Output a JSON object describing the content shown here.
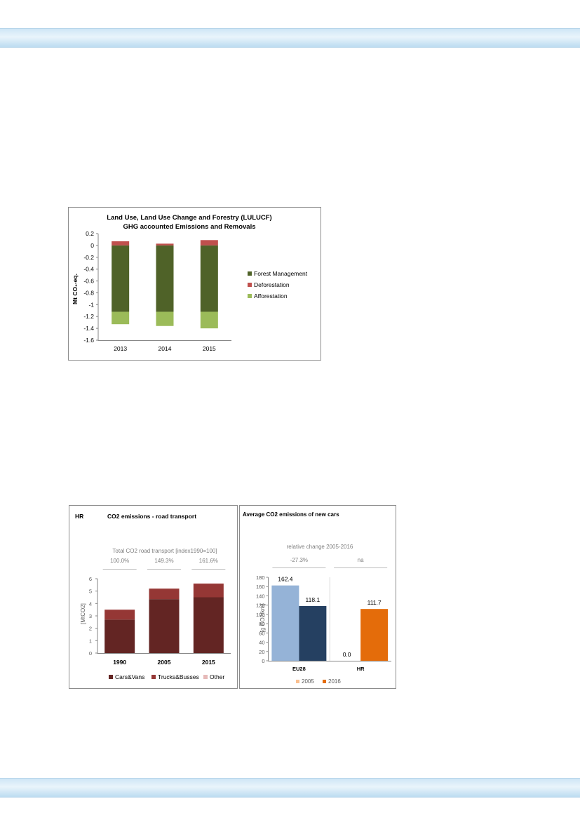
{
  "colors": {
    "forest_management": "#4f6228",
    "deforestation": "#c0504d",
    "afforestation": "#9bbb59",
    "cars_vans": "#632523",
    "trucks_busses": "#953735",
    "other": "#e6b9b8",
    "y2005": "#95b3d7",
    "y2016": "#254061",
    "hr_2016": "#e46c0a",
    "legend_2005": "#fac090",
    "legend_2016": "#e46c0a"
  },
  "chart_data": [
    {
      "type": "bar",
      "stacked": true,
      "title": "Land Use, Land Use Change and Forestry (LULUCF)",
      "subtitle": "GHG accounted Emissions and Removals",
      "ylabel": "Mt CO₂-eq.",
      "xlabel": "",
      "categories": [
        "2013",
        "2014",
        "2015"
      ],
      "series": [
        {
          "name": "Forest Management",
          "values": [
            -1.12,
            -1.12,
            -1.12
          ],
          "color": "#4f6228"
        },
        {
          "name": "Deforestation",
          "values": [
            0.07,
            0.03,
            0.09
          ],
          "color": "#c0504d"
        },
        {
          "name": "Afforestation",
          "values": [
            -0.21,
            -0.24,
            -0.28
          ],
          "color": "#9bbb59"
        }
      ],
      "ylim": [
        -1.6,
        0.2
      ],
      "yticks": [
        "0.2",
        "0",
        "-0.2",
        "-0.4",
        "-0.6",
        "-0.8",
        "-1",
        "-1.2",
        "-1.4",
        "-1.6"
      ],
      "grid": false,
      "legend": "right"
    },
    {
      "type": "bar",
      "stacked": true,
      "corner_label": "HR",
      "title": "CO2 emissions - road transport",
      "index_title": "Total CO2 road  transport [index1990=100]",
      "index_values": [
        "100.0%",
        "149.3%",
        "161.6%"
      ],
      "ylabel": "[MtCO2]",
      "categories": [
        "1990",
        "2005",
        "2015"
      ],
      "series": [
        {
          "name": "Cars&Vans",
          "values": [
            2.7,
            4.35,
            4.5
          ],
          "color": "#632523"
        },
        {
          "name": "Trucks&Busses",
          "values": [
            0.8,
            0.85,
            1.1
          ],
          "color": "#953735"
        },
        {
          "name": "Other",
          "values": [
            0.02,
            0.02,
            0.03
          ],
          "color": "#e6b9b8"
        }
      ],
      "ylim": [
        0,
        6
      ],
      "yticks": [
        "0",
        "1",
        "2",
        "3",
        "4",
        "5",
        "6"
      ],
      "grid": false,
      "legend": "bottom"
    },
    {
      "type": "bar",
      "title": "Average CO2 emissions of new cars",
      "change_title": "relative change 2005-2016",
      "change_values": [
        "-27.3%",
        "na"
      ],
      "ylabel": "[g CO2/km]",
      "categories": [
        "EU28",
        "HR"
      ],
      "series": [
        {
          "name": "2005",
          "values": [
            162.4,
            0.0
          ],
          "labels": [
            "162.4",
            "0.0"
          ]
        },
        {
          "name": "2016",
          "values": [
            118.1,
            111.7
          ],
          "labels": [
            "118.1",
            "111.7"
          ]
        }
      ],
      "ylim": [
        0,
        180
      ],
      "yticks": [
        "0",
        "20",
        "40",
        "60",
        "80",
        "100",
        "120",
        "140",
        "160",
        "180"
      ],
      "grid": false,
      "legend": "bottom"
    }
  ]
}
